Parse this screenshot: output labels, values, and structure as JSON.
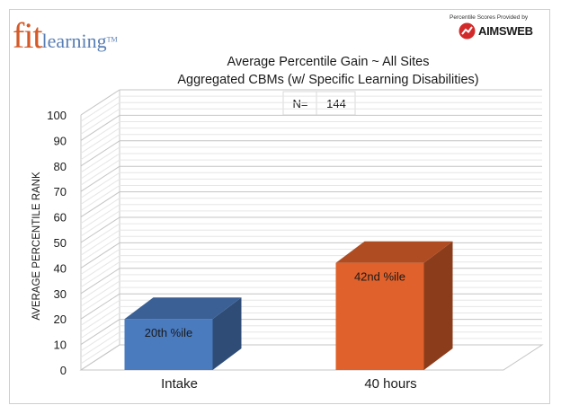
{
  "branding": {
    "logo_fit": "fit",
    "logo_learning": "learning",
    "logo_tm": "TM",
    "provider_note": "Percentile Scores Provided by",
    "provider_brand": "AIMSWEB",
    "provider_icon": "aimsweb-red-circle-icon"
  },
  "chart_data": {
    "type": "bar",
    "title": "Average Percentile Gain ~ All Sites",
    "subtitle": "Aggregated CBMs (w/ Specific Learning Disabilities)",
    "n_label": "N=",
    "n_value": "144",
    "ylabel": "AVERAGE PERCENTILE RANK",
    "ylim": [
      0,
      100
    ],
    "yticks": [
      0,
      10,
      20,
      30,
      40,
      50,
      60,
      70,
      80,
      90,
      100
    ],
    "grid": true,
    "categories": [
      "Intake",
      "40 hours"
    ],
    "values": [
      20,
      42
    ],
    "data_labels": [
      "20th %ile",
      "42nd %ile"
    ],
    "colors": [
      "#4a7bbf",
      "#e0612b"
    ]
  }
}
